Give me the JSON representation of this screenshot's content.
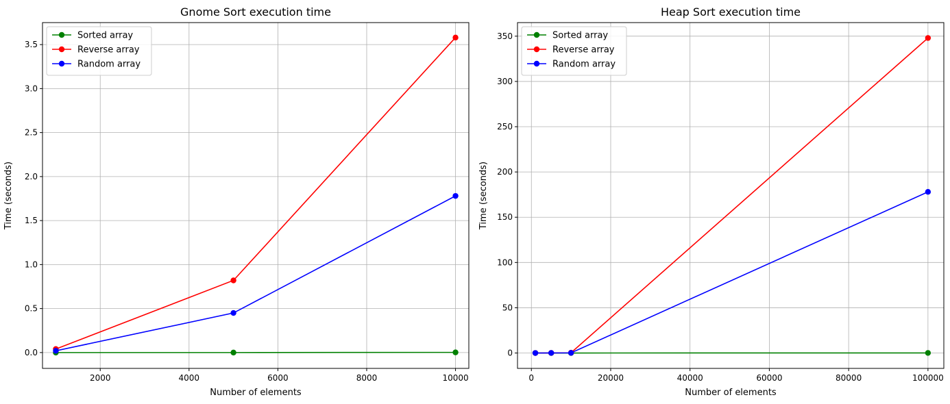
{
  "chart_data": [
    {
      "type": "line",
      "title": "Gnome Sort execution time",
      "xlabel": "Number of elements",
      "ylabel": "Time (seconds)",
      "xlim": [
        700,
        10300
      ],
      "ylim": [
        -0.18,
        3.75
      ],
      "xticks": [
        2000,
        4000,
        6000,
        8000,
        10000
      ],
      "xtick_labels": [
        "2000",
        "4000",
        "6000",
        "8000",
        "10000"
      ],
      "yticks": [
        0.0,
        0.5,
        1.0,
        1.5,
        2.0,
        2.5,
        3.0,
        3.5
      ],
      "ytick_labels": [
        "0.0",
        "0.5",
        "1.0",
        "1.5",
        "2.0",
        "2.5",
        "3.0",
        "3.5"
      ],
      "grid": true,
      "legend_position": "upper-left",
      "x": [
        1000,
        5000,
        10000
      ],
      "series": [
        {
          "name": "Sorted array",
          "color": "#008000",
          "values": [
            0.0,
            0.0,
            0.002
          ]
        },
        {
          "name": "Reverse array",
          "color": "#ff0000",
          "values": [
            0.04,
            0.82,
            3.58
          ]
        },
        {
          "name": "Random array",
          "color": "#0000ff",
          "values": [
            0.02,
            0.45,
            1.78
          ]
        }
      ]
    },
    {
      "type": "line",
      "title": "Heap Sort execution time",
      "xlabel": "Number of elements",
      "ylabel": "Time (seconds)",
      "xlim": [
        -3500,
        104000
      ],
      "ylim": [
        -17,
        365
      ],
      "xticks": [
        0,
        20000,
        40000,
        60000,
        80000,
        100000
      ],
      "xtick_labels": [
        "0",
        "20000",
        "40000",
        "60000",
        "80000",
        "100000"
      ],
      "yticks": [
        0,
        50,
        100,
        150,
        200,
        250,
        300,
        350
      ],
      "ytick_labels": [
        "0",
        "50",
        "100",
        "150",
        "200",
        "250",
        "300",
        "350"
      ],
      "grid": true,
      "legend_position": "upper-left",
      "x": [
        1000,
        5000,
        10000,
        100000
      ],
      "series": [
        {
          "name": "Sorted array",
          "color": "#008000",
          "values": [
            0.0,
            0.0,
            0.0,
            0.1
          ]
        },
        {
          "name": "Reverse array",
          "color": "#ff0000",
          "values": [
            0.0,
            0.1,
            0.3,
            348.0
          ]
        },
        {
          "name": "Random array",
          "color": "#0000ff",
          "values": [
            0.0,
            0.05,
            0.15,
            178.0
          ]
        }
      ]
    }
  ]
}
